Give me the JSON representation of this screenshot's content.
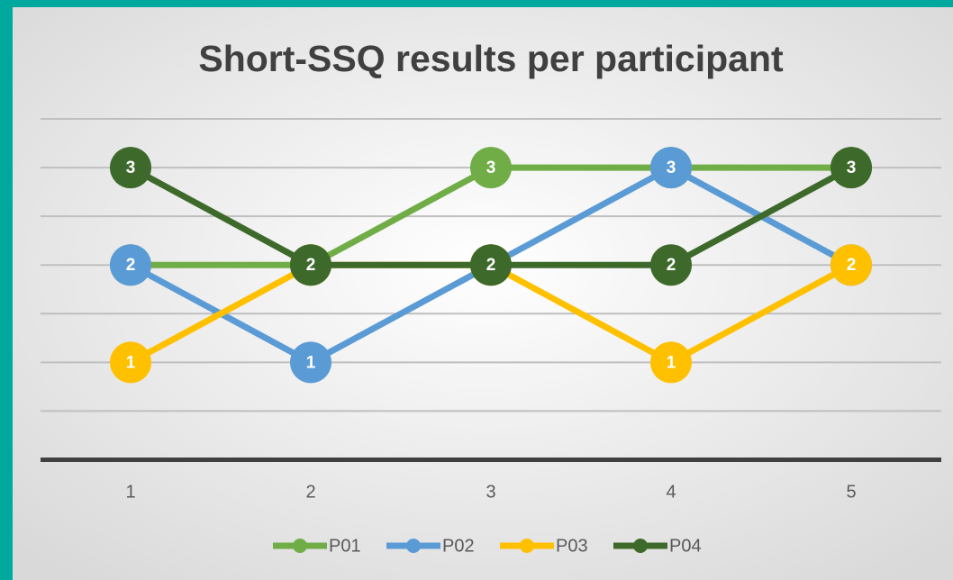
{
  "chart_data": {
    "type": "line",
    "title": "Short-SSQ results per participant",
    "categories": [
      "1",
      "2",
      "3",
      "4",
      "5"
    ],
    "series": [
      {
        "name": "P01",
        "color": "#70ad47",
        "values": [
          2,
          2,
          3,
          3,
          3
        ]
      },
      {
        "name": "P02",
        "color": "#5b9bd5",
        "values": [
          2,
          1,
          2,
          3,
          2
        ]
      },
      {
        "name": "P03",
        "color": "#ffc000",
        "values": [
          1,
          2,
          2,
          1,
          2
        ]
      },
      {
        "name": "P04",
        "color": "#3d6a2b",
        "values": [
          3,
          2,
          2,
          2,
          3
        ]
      }
    ],
    "ylim": [
      0,
      3.5
    ],
    "yticks": [
      0.5,
      1,
      1.5,
      2,
      2.5,
      3,
      3.5
    ],
    "grid": true,
    "legend": "bottom",
    "data_labels": true
  }
}
